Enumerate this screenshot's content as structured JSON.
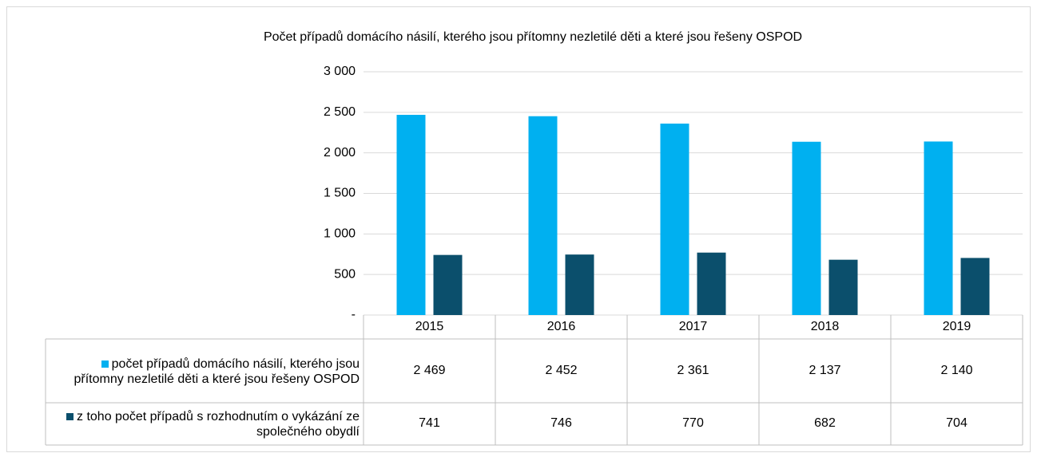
{
  "chart_data": {
    "type": "bar",
    "title": "Počet případů domácího násilí, kterého jsou přítomny nezletilé děti a které jsou řešeny OSPOD",
    "categories": [
      "2015",
      "2016",
      "2017",
      "2018",
      "2019"
    ],
    "series": [
      {
        "name": "počet případů domácího násilí, kterého jsou přítomny nezletilé děti a které jsou řešeny OSPOD",
        "color": "#00b0f0",
        "values": [
          2469,
          2452,
          2361,
          2137,
          2140
        ],
        "value_labels": [
          "2 469",
          "2 452",
          "2 361",
          "2 137",
          "2 140"
        ]
      },
      {
        "name": "z toho počet případů s rozhodnutím o vykázání ze společného obydlí",
        "color": "#0b4f6c",
        "values": [
          741,
          746,
          770,
          682,
          704
        ]
      }
    ],
    "ylim": [
      0,
      3000
    ],
    "yticks": [
      {
        "value": 0,
        "label": "-"
      },
      500,
      {
        "value": 1000,
        "label": "1 000"
      },
      {
        "value": 1500,
        "label": "1 500"
      },
      {
        "value": 2000,
        "label": "2 000"
      },
      {
        "value": 2500,
        "label": "2 500"
      },
      {
        "value": 3000,
        "label": "3 000"
      }
    ],
    "grid": true,
    "legend": "table"
  }
}
